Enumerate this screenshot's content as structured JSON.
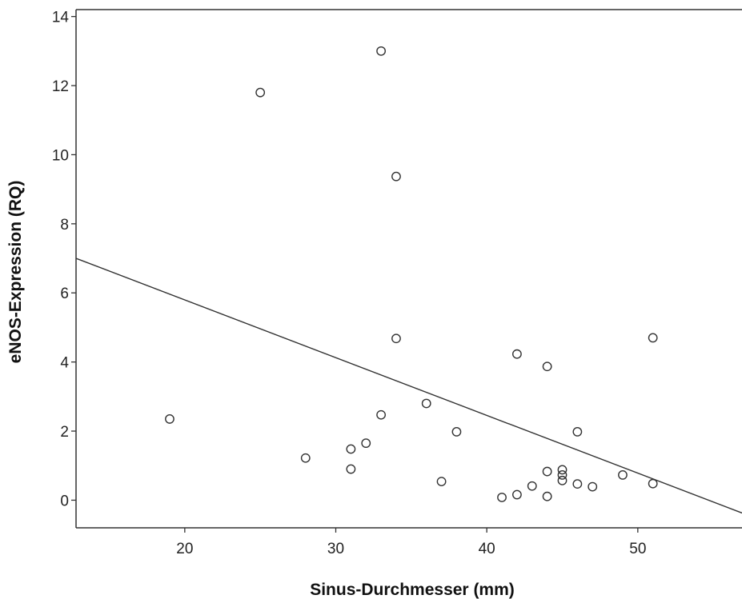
{
  "chart_data": {
    "type": "scatter",
    "title": "",
    "xlabel": "Sinus-Durchmesser (mm)",
    "ylabel": "eNOS-Expression (RQ)",
    "xlim": [
      12.8,
      56.9
    ],
    "ylim": [
      -0.8,
      14.2
    ],
    "x_ticks": [
      20,
      30,
      40,
      50
    ],
    "y_ticks": [
      0,
      2,
      4,
      6,
      8,
      10,
      12,
      14
    ],
    "grid": false,
    "points": [
      {
        "x": 19,
        "y": 2.35
      },
      {
        "x": 25,
        "y": 11.8
      },
      {
        "x": 28,
        "y": 1.22
      },
      {
        "x": 31,
        "y": 1.48
      },
      {
        "x": 31,
        "y": 0.9
      },
      {
        "x": 32,
        "y": 1.65
      },
      {
        "x": 33,
        "y": 13.0
      },
      {
        "x": 33,
        "y": 2.47
      },
      {
        "x": 34,
        "y": 9.37
      },
      {
        "x": 34,
        "y": 4.68
      },
      {
        "x": 36,
        "y": 2.8
      },
      {
        "x": 37,
        "y": 0.54
      },
      {
        "x": 38,
        "y": 1.98
      },
      {
        "x": 41,
        "y": 0.08
      },
      {
        "x": 42,
        "y": 4.23
      },
      {
        "x": 42,
        "y": 0.16
      },
      {
        "x": 43,
        "y": 0.41
      },
      {
        "x": 44,
        "y": 3.87
      },
      {
        "x": 44,
        "y": 0.83
      },
      {
        "x": 44,
        "y": 0.11
      },
      {
        "x": 45,
        "y": 0.88
      },
      {
        "x": 45,
        "y": 0.73
      },
      {
        "x": 45,
        "y": 0.57
      },
      {
        "x": 46,
        "y": 1.98
      },
      {
        "x": 46,
        "y": 0.47
      },
      {
        "x": 47,
        "y": 0.39
      },
      {
        "x": 49,
        "y": 0.73
      },
      {
        "x": 51,
        "y": 4.7
      },
      {
        "x": 51,
        "y": 0.48
      }
    ],
    "fit_line": {
      "x": [
        12.8,
        56.9
      ],
      "y": [
        7.0,
        -0.37
      ]
    },
    "colors": {
      "points": "#333333",
      "line": "#333333",
      "axes": "#333333"
    }
  }
}
